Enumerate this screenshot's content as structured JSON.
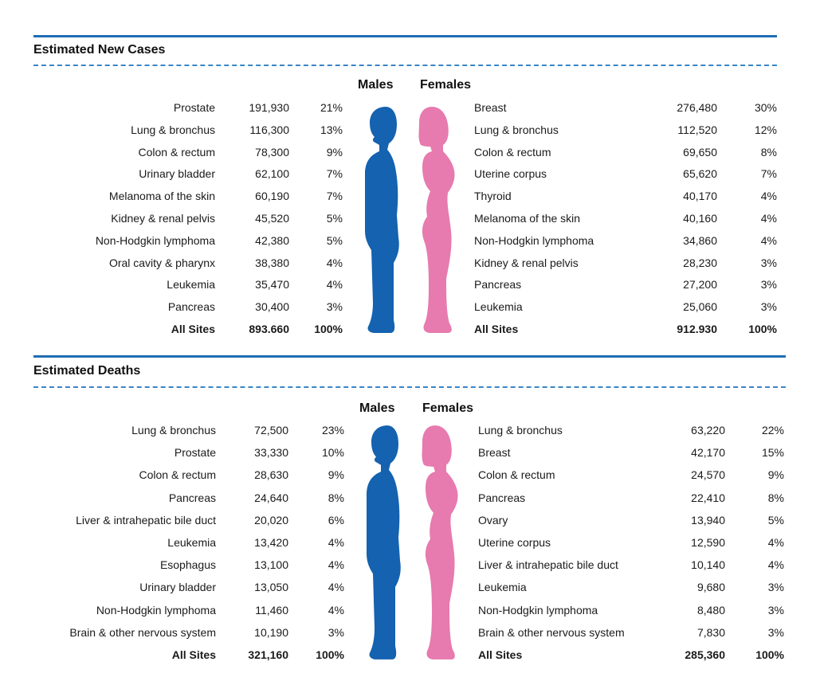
{
  "colors": {
    "male": "#1462b0",
    "female": "#e77aae",
    "rule": "#1f6db5"
  },
  "chart_data": [
    {
      "type": "table",
      "title": "Estimated New Cases",
      "males_label": "Males",
      "females_label": "Females",
      "males": [
        {
          "site": "Prostate",
          "count": "191,930",
          "pct": "21%"
        },
        {
          "site": "Lung & bronchus",
          "count": "116,300",
          "pct": "13%"
        },
        {
          "site": "Colon & rectum",
          "count": "78,300",
          "pct": "9%"
        },
        {
          "site": "Urinary bladder",
          "count": "62,100",
          "pct": "7%"
        },
        {
          "site": "Melanoma of the skin",
          "count": "60,190",
          "pct": "7%"
        },
        {
          "site": "Kidney & renal pelvis",
          "count": "45,520",
          "pct": "5%"
        },
        {
          "site": "Non-Hodgkin lymphoma",
          "count": "42,380",
          "pct": "5%"
        },
        {
          "site": "Oral cavity & pharynx",
          "count": "38,380",
          "pct": "4%"
        },
        {
          "site": "Leukemia",
          "count": "35,470",
          "pct": "4%"
        },
        {
          "site": "Pancreas",
          "count": "30,400",
          "pct": "3%"
        }
      ],
      "males_total": {
        "site": "All Sites",
        "count": "893.660",
        "pct": "100%"
      },
      "females": [
        {
          "site": "Breast",
          "count": "276,480",
          "pct": "30%"
        },
        {
          "site": "Lung & bronchus",
          "count": "112,520",
          "pct": "12%"
        },
        {
          "site": "Colon & rectum",
          "count": "69,650",
          "pct": "8%"
        },
        {
          "site": "Uterine corpus",
          "count": "65,620",
          "pct": "7%"
        },
        {
          "site": "Thyroid",
          "count": "40,170",
          "pct": "4%"
        },
        {
          "site": "Melanoma of the skin",
          "count": "40,160",
          "pct": "4%"
        },
        {
          "site": "Non-Hodgkin lymphoma",
          "count": "34,860",
          "pct": "4%"
        },
        {
          "site": "Kidney & renal pelvis",
          "count": "28,230",
          "pct": "3%"
        },
        {
          "site": "Pancreas",
          "count": "27,200",
          "pct": "3%"
        },
        {
          "site": "Leukemia",
          "count": "25,060",
          "pct": "3%"
        }
      ],
      "females_total": {
        "site": "All Sites",
        "count": "912.930",
        "pct": "100%"
      }
    },
    {
      "type": "table",
      "title": "Estimated Deaths",
      "males_label": "Males",
      "females_label": "Females",
      "males": [
        {
          "site": "Lung & bronchus",
          "count": "72,500",
          "pct": "23%"
        },
        {
          "site": "Prostate",
          "count": "33,330",
          "pct": "10%"
        },
        {
          "site": "Colon & rectum",
          "count": "28,630",
          "pct": "9%"
        },
        {
          "site": "Pancreas",
          "count": "24,640",
          "pct": "8%"
        },
        {
          "site": "Liver & intrahepatic bile duct",
          "count": "20,020",
          "pct": "6%"
        },
        {
          "site": "Leukemia",
          "count": "13,420",
          "pct": "4%"
        },
        {
          "site": "Esophagus",
          "count": "13,100",
          "pct": "4%"
        },
        {
          "site": "Urinary bladder",
          "count": "13,050",
          "pct": "4%"
        },
        {
          "site": "Non-Hodgkin lymphoma",
          "count": "11,460",
          "pct": "4%"
        },
        {
          "site": "Brain & other nervous system",
          "count": "10,190",
          "pct": "3%"
        }
      ],
      "males_total": {
        "site": "All Sites",
        "count": "321,160",
        "pct": "100%"
      },
      "females": [
        {
          "site": "Lung & bronchus",
          "count": "63,220",
          "pct": "22%"
        },
        {
          "site": "Breast",
          "count": "42,170",
          "pct": "15%"
        },
        {
          "site": "Colon & rectum",
          "count": "24,570",
          "pct": "9%"
        },
        {
          "site": "Pancreas",
          "count": "22,410",
          "pct": "8%"
        },
        {
          "site": "Ovary",
          "count": "13,940",
          "pct": "5%"
        },
        {
          "site": "Uterine corpus",
          "count": "12,590",
          "pct": "4%"
        },
        {
          "site": "Liver & intrahepatic bile duct",
          "count": "10,140",
          "pct": "4%"
        },
        {
          "site": "Leukemia",
          "count": "9,680",
          "pct": "3%"
        },
        {
          "site": "Non-Hodgkin lymphoma",
          "count": "8,480",
          "pct": "3%"
        },
        {
          "site": "Brain & other nervous system",
          "count": "7,830",
          "pct": "3%"
        }
      ],
      "females_total": {
        "site": "All Sites",
        "count": "285,360",
        "pct": "100%"
      }
    }
  ]
}
